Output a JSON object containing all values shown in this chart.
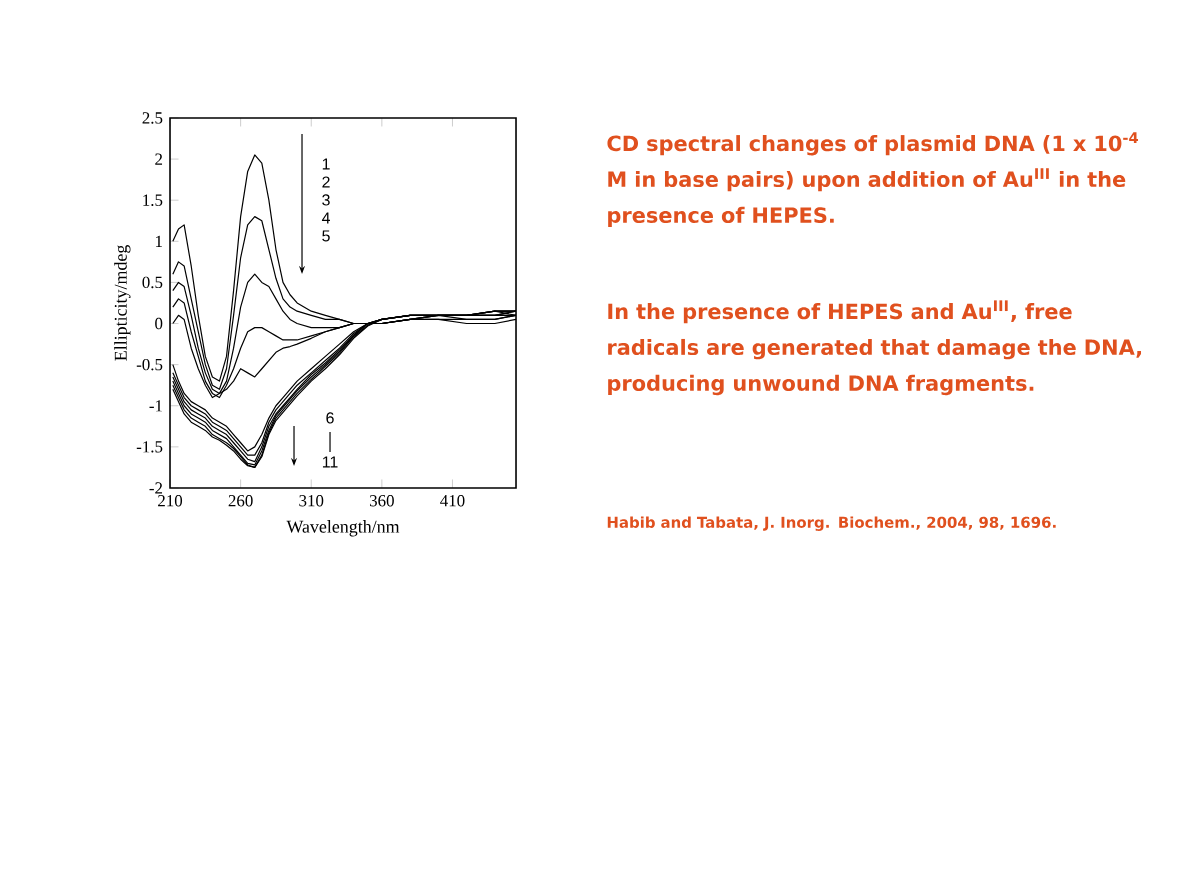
{
  "chart_data": {
    "type": "line",
    "xlabel": "Wavelength/nm",
    "ylabel": "Ellipticity/mdeg",
    "x": [
      212,
      216,
      220,
      225,
      230,
      235,
      240,
      245,
      250,
      255,
      260,
      265,
      270,
      275,
      280,
      285,
      290,
      295,
      300,
      310,
      320,
      330,
      340,
      350,
      360,
      380,
      400,
      420,
      440,
      455
    ],
    "series": [
      {
        "color": "#000000",
        "values": [
          1.0,
          1.15,
          1.2,
          0.7,
          0.1,
          -0.4,
          -0.65,
          -0.7,
          -0.4,
          0.4,
          1.3,
          1.85,
          2.05,
          1.95,
          1.5,
          0.9,
          0.5,
          0.35,
          0.25,
          0.15,
          0.1,
          0.05,
          0,
          0,
          0,
          0.05,
          0.1,
          0.1,
          0.15,
          0.15
        ]
      },
      {
        "color": "#000000",
        "values": [
          0.6,
          0.75,
          0.7,
          0.3,
          -0.1,
          -0.5,
          -0.75,
          -0.8,
          -0.55,
          0.1,
          0.8,
          1.2,
          1.3,
          1.25,
          0.9,
          0.55,
          0.3,
          0.2,
          0.15,
          0.1,
          0.05,
          0.05,
          0,
          0,
          0,
          0.05,
          0.1,
          0.1,
          0.15,
          0.15
        ]
      },
      {
        "color": "#000000",
        "values": [
          0.4,
          0.5,
          0.45,
          0.1,
          -0.3,
          -0.6,
          -0.8,
          -0.85,
          -0.7,
          -0.3,
          0.2,
          0.5,
          0.6,
          0.5,
          0.45,
          0.3,
          0.15,
          0.05,
          0,
          -0.05,
          -0.05,
          -0.05,
          0,
          0,
          0,
          0.05,
          0.1,
          0.05,
          0.05,
          0.1
        ]
      },
      {
        "color": "#000000",
        "values": [
          0.2,
          0.3,
          0.25,
          -0.1,
          -0.4,
          -0.7,
          -0.85,
          -0.9,
          -0.75,
          -0.55,
          -0.3,
          -0.1,
          -0.05,
          -0.05,
          -0.1,
          -0.15,
          -0.2,
          -0.2,
          -0.2,
          -0.15,
          -0.1,
          -0.05,
          0,
          0,
          0,
          0.05,
          0.05,
          0,
          0,
          0.05
        ]
      },
      {
        "color": "#000000",
        "values": [
          0,
          0.1,
          0.05,
          -0.3,
          -0.55,
          -0.75,
          -0.9,
          -0.85,
          -0.8,
          -0.7,
          -0.55,
          -0.6,
          -0.65,
          -0.55,
          -0.45,
          -0.35,
          -0.3,
          -0.28,
          -0.25,
          -0.18,
          -0.1,
          -0.05,
          0,
          0,
          0,
          0.05,
          0.05,
          0.05,
          0.05,
          0.1
        ]
      },
      {
        "color": "#000000",
        "values": [
          -0.5,
          -0.7,
          -0.85,
          -0.95,
          -1.0,
          -1.05,
          -1.15,
          -1.2,
          -1.25,
          -1.35,
          -1.45,
          -1.55,
          -1.5,
          -1.35,
          -1.15,
          -1.0,
          -0.9,
          -0.8,
          -0.7,
          -0.55,
          -0.4,
          -0.25,
          -0.1,
          0,
          0.05,
          0.1,
          0.1,
          0.1,
          0.15,
          0.15
        ]
      },
      {
        "color": "#000000",
        "values": [
          -0.6,
          -0.75,
          -0.9,
          -1.0,
          -1.05,
          -1.1,
          -1.2,
          -1.25,
          -1.3,
          -1.4,
          -1.5,
          -1.6,
          -1.6,
          -1.45,
          -1.2,
          -1.05,
          -0.95,
          -0.85,
          -0.75,
          -0.6,
          -0.45,
          -0.3,
          -0.12,
          0,
          0.05,
          0.1,
          0.1,
          0.1,
          0.1,
          0.15
        ]
      },
      {
        "color": "#000000",
        "values": [
          -0.65,
          -0.8,
          -0.95,
          -1.05,
          -1.1,
          -1.15,
          -1.25,
          -1.3,
          -1.35,
          -1.45,
          -1.55,
          -1.65,
          -1.68,
          -1.5,
          -1.25,
          -1.1,
          -1.0,
          -0.9,
          -0.8,
          -0.62,
          -0.48,
          -0.32,
          -0.14,
          0,
          0.05,
          0.1,
          0.1,
          0.1,
          0.15,
          0.1
        ]
      },
      {
        "color": "#000000",
        "values": [
          -0.7,
          -0.85,
          -1.0,
          -1.1,
          -1.15,
          -1.2,
          -1.3,
          -1.35,
          -1.4,
          -1.5,
          -1.6,
          -1.7,
          -1.72,
          -1.55,
          -1.3,
          -1.12,
          -1.02,
          -0.92,
          -0.82,
          -0.65,
          -0.5,
          -0.34,
          -0.15,
          0,
          0.05,
          0.1,
          0.1,
          0.1,
          0.1,
          0.15
        ]
      },
      {
        "color": "#000000",
        "values": [
          -0.75,
          -0.9,
          -1.05,
          -1.15,
          -1.2,
          -1.25,
          -1.35,
          -1.4,
          -1.45,
          -1.52,
          -1.62,
          -1.72,
          -1.75,
          -1.6,
          -1.33,
          -1.15,
          -1.05,
          -0.95,
          -0.85,
          -0.68,
          -0.52,
          -0.36,
          -0.16,
          -0.02,
          0.05,
          0.1,
          0.1,
          0.1,
          0.1,
          0.1
        ]
      },
      {
        "color": "#000000",
        "values": [
          -0.8,
          -0.95,
          -1.1,
          -1.2,
          -1.25,
          -1.3,
          -1.38,
          -1.42,
          -1.48,
          -1.55,
          -1.65,
          -1.73,
          -1.75,
          -1.62,
          -1.35,
          -1.18,
          -1.08,
          -0.98,
          -0.88,
          -0.7,
          -0.55,
          -0.38,
          -0.18,
          -0.03,
          0.05,
          0.1,
          0.1,
          0.1,
          0.1,
          0.1
        ]
      }
    ],
    "xlim": [
      210,
      455
    ],
    "ylim": [
      -2,
      2.5
    ],
    "xticks": [
      210,
      260,
      310,
      360,
      410
    ],
    "yticks": [
      -2,
      -1.5,
      -1,
      -0.5,
      0,
      0.5,
      1,
      1.5,
      2,
      2.5
    ],
    "annotations": [
      "1",
      "2",
      "3",
      "4",
      "5",
      "6",
      "11",
      "CD spectral changes of plasmid DNA (1 x 10$^{-4}$ M in base pairs) upon addition of Au$^{III}$ in the presence of HEPES.",
      "In the presence of HEPES and Au$^{III}$, free radicals are generated that damage the DNA, producing unwound DNA fragments.",
      "Habib and Tabata, J. Inorg. Biochem., 2004, 98, 1696."
    ]
  }
}
